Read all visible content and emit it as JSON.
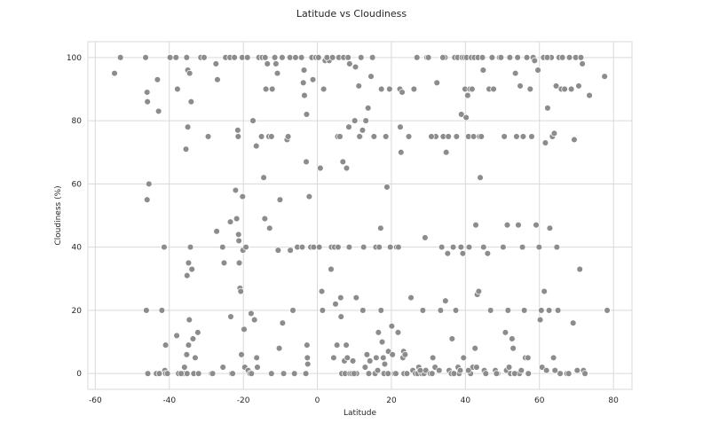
{
  "chart_data": {
    "type": "scatter",
    "title": "Latitude vs Cloudiness",
    "xlabel": "Latitude",
    "ylabel": "Cloudiness (%)",
    "xlim": [
      -62,
      85
    ],
    "ylim": [
      -5,
      105
    ],
    "xticks": [
      -60,
      -40,
      -20,
      0,
      20,
      40,
      60,
      80
    ],
    "yticks": [
      0,
      20,
      40,
      60,
      80,
      100
    ],
    "grid": true,
    "legend": "none",
    "marker_color": "#8c8c8c",
    "marker_edge": "#ffffff",
    "points": [
      [
        -54.8,
        95
      ],
      [
        -53.2,
        100
      ],
      [
        -46.4,
        100
      ],
      [
        -46,
        89
      ],
      [
        -45.9,
        86
      ],
      [
        -45.5,
        60
      ],
      [
        -46,
        55
      ],
      [
        -46.2,
        20
      ],
      [
        -45.8,
        0
      ],
      [
        -43.2,
        93
      ],
      [
        -42.9,
        83
      ],
      [
        -42,
        20
      ],
      [
        -41.4,
        40
      ],
      [
        -41,
        9
      ],
      [
        -41.2,
        1
      ],
      [
        -41,
        0
      ],
      [
        -43.5,
        0
      ],
      [
        -39.8,
        100
      ],
      [
        -38.2,
        100
      ],
      [
        -37.8,
        90
      ],
      [
        -38,
        12
      ],
      [
        -37.5,
        0
      ],
      [
        -36,
        0
      ],
      [
        -35.3,
        100
      ],
      [
        -35,
        96
      ],
      [
        -34.5,
        95
      ],
      [
        -34.1,
        86
      ],
      [
        -35,
        78
      ],
      [
        -35.5,
        71
      ],
      [
        -35.2,
        31
      ],
      [
        -34.8,
        35
      ],
      [
        -34.3,
        40
      ],
      [
        -33.9,
        33
      ],
      [
        -34.6,
        17
      ],
      [
        -33.6,
        11
      ],
      [
        -34.8,
        9
      ],
      [
        -35.3,
        6
      ],
      [
        -33,
        5
      ],
      [
        -35.9,
        2
      ],
      [
        -35.2,
        0
      ],
      [
        -33.4,
        0
      ],
      [
        -32.3,
        13
      ],
      [
        -31.5,
        100
      ],
      [
        -30.6,
        100
      ],
      [
        -29.5,
        75
      ],
      [
        -28.6,
        0
      ],
      [
        -27.4,
        98
      ],
      [
        -27,
        93
      ],
      [
        -27.2,
        45
      ],
      [
        -25.6,
        40
      ],
      [
        -25.2,
        35
      ],
      [
        -25.5,
        2
      ],
      [
        -24.8,
        100
      ],
      [
        -23.6,
        100
      ],
      [
        -23.5,
        48
      ],
      [
        -23.4,
        18
      ],
      [
        -23.2,
        0
      ],
      [
        -22.4,
        100
      ],
      [
        -22.1,
        58
      ],
      [
        -21.8,
        49
      ],
      [
        -21.5,
        77
      ],
      [
        -21.4,
        75
      ],
      [
        -21.3,
        44
      ],
      [
        -21.2,
        42
      ],
      [
        -21.1,
        35
      ],
      [
        -20.9,
        27
      ],
      [
        -20.7,
        26
      ],
      [
        -20.5,
        6
      ],
      [
        -20.3,
        100
      ],
      [
        -20.2,
        56
      ],
      [
        -20.1,
        39
      ],
      [
        -19.8,
        14
      ],
      [
        -19.6,
        2
      ],
      [
        -19.3,
        40
      ],
      [
        -18.9,
        100
      ],
      [
        -18.7,
        1
      ],
      [
        -18.2,
        0
      ],
      [
        -17.9,
        19
      ],
      [
        -17.4,
        80
      ],
      [
        -17,
        17
      ],
      [
        -16.5,
        72
      ],
      [
        -16.4,
        5
      ],
      [
        -16.2,
        2
      ],
      [
        -15.8,
        100
      ],
      [
        -14.9,
        100
      ],
      [
        -14.5,
        62
      ],
      [
        -14.2,
        49
      ],
      [
        -14.1,
        100
      ],
      [
        -13.9,
        90
      ],
      [
        -13.5,
        98
      ],
      [
        -13.1,
        75
      ],
      [
        -12.9,
        46
      ],
      [
        -12.4,
        75
      ],
      [
        -12.2,
        90
      ],
      [
        -11.5,
        100
      ],
      [
        -11.2,
        98
      ],
      [
        -10.8,
        95
      ],
      [
        -10.6,
        39
      ],
      [
        -10.3,
        8
      ],
      [
        -10.1,
        55
      ],
      [
        -9.5,
        100
      ],
      [
        -9.4,
        16
      ],
      [
        -9.1,
        0
      ],
      [
        -8.2,
        74
      ],
      [
        -7.9,
        75
      ],
      [
        -7.4,
        100
      ],
      [
        -7.3,
        39
      ],
      [
        -6.6,
        20
      ],
      [
        -6.2,
        0
      ],
      [
        -5.4,
        40
      ],
      [
        -4.3,
        100
      ],
      [
        -4.1,
        40
      ],
      [
        -3.8,
        92
      ],
      [
        -3.6,
        96
      ],
      [
        -3.5,
        88
      ],
      [
        -3.3,
        0
      ],
      [
        -3,
        67
      ],
      [
        -2.9,
        82
      ],
      [
        -2.8,
        9
      ],
      [
        -2.7,
        5
      ],
      [
        -2.6,
        3
      ],
      [
        -2.2,
        56
      ],
      [
        -1.8,
        40
      ],
      [
        -1.5,
        100
      ],
      [
        -1.2,
        93
      ],
      [
        -1,
        40
      ],
      [
        -0.4,
        100
      ],
      [
        0.3,
        100
      ],
      [
        0.5,
        40
      ],
      [
        0.8,
        65
      ],
      [
        1.2,
        26
      ],
      [
        1.4,
        20
      ],
      [
        1.7,
        90
      ],
      [
        2.1,
        99
      ],
      [
        3.2,
        99
      ],
      [
        3.7,
        33
      ],
      [
        3.8,
        40
      ],
      [
        4.1,
        100
      ],
      [
        4.4,
        5
      ],
      [
        4.6,
        40
      ],
      [
        4.9,
        22
      ],
      [
        5.3,
        9
      ],
      [
        5.5,
        75
      ],
      [
        5.6,
        40
      ],
      [
        5.8,
        100
      ],
      [
        6.1,
        75
      ],
      [
        6.3,
        24
      ],
      [
        6.4,
        18
      ],
      [
        6.6,
        0
      ],
      [
        6.9,
        67
      ],
      [
        7.1,
        100
      ],
      [
        7.3,
        4
      ],
      [
        7.5,
        0
      ],
      [
        7.8,
        9
      ],
      [
        7.9,
        65
      ],
      [
        8.1,
        5
      ],
      [
        8.3,
        100
      ],
      [
        8.5,
        78
      ],
      [
        8.6,
        40
      ],
      [
        8.7,
        98
      ],
      [
        8.8,
        0
      ],
      [
        9.3,
        0
      ],
      [
        9.6,
        4
      ],
      [
        10.1,
        80
      ],
      [
        10.3,
        97
      ],
      [
        10.5,
        24
      ],
      [
        10.6,
        0
      ],
      [
        11.2,
        91
      ],
      [
        11.6,
        75
      ],
      [
        11.8,
        100
      ],
      [
        12.2,
        77
      ],
      [
        12.3,
        20
      ],
      [
        12.5,
        40
      ],
      [
        12.9,
        2
      ],
      [
        13.1,
        80
      ],
      [
        13.4,
        6
      ],
      [
        13.7,
        84
      ],
      [
        13.9,
        0
      ],
      [
        14.2,
        4
      ],
      [
        14.5,
        94
      ],
      [
        14.7,
        100
      ],
      [
        14.9,
        100
      ],
      [
        15.3,
        75
      ],
      [
        15.6,
        0
      ],
      [
        15.8,
        40
      ],
      [
        16.3,
        1
      ],
      [
        16.5,
        13
      ],
      [
        16.7,
        40
      ],
      [
        17.1,
        46
      ],
      [
        17.2,
        20
      ],
      [
        17.3,
        90
      ],
      [
        17.5,
        10
      ],
      [
        17.8,
        5
      ],
      [
        18,
        0
      ],
      [
        18.2,
        3
      ],
      [
        18.5,
        75
      ],
      [
        18.8,
        59
      ],
      [
        19.2,
        7
      ],
      [
        19.5,
        90
      ],
      [
        19.7,
        40
      ],
      [
        20.1,
        15
      ],
      [
        20.3,
        6
      ],
      [
        20.8,
        0
      ],
      [
        21.2,
        0
      ],
      [
        21.4,
        40
      ],
      [
        21.8,
        13
      ],
      [
        22.3,
        90
      ],
      [
        22.4,
        78
      ],
      [
        22.6,
        70
      ],
      [
        22.9,
        89
      ],
      [
        23.1,
        5
      ],
      [
        23.3,
        7
      ],
      [
        23.4,
        0
      ],
      [
        23.7,
        6
      ],
      [
        24.2,
        0
      ],
      [
        24.7,
        75
      ],
      [
        25.3,
        24
      ],
      [
        25.8,
        1
      ],
      [
        26.1,
        90
      ],
      [
        26.5,
        0
      ],
      [
        27.1,
        0
      ],
      [
        27.4,
        2
      ],
      [
        28.2,
        0
      ],
      [
        28.5,
        20
      ],
      [
        28.8,
        0
      ],
      [
        29.1,
        43
      ],
      [
        29.3,
        1
      ],
      [
        29.6,
        100
      ],
      [
        30,
        100
      ],
      [
        30.5,
        0
      ],
      [
        31,
        0
      ],
      [
        31.2,
        5
      ],
      [
        31.8,
        2
      ],
      [
        32,
        75
      ],
      [
        32.3,
        92
      ],
      [
        32.9,
        1
      ],
      [
        33.3,
        20
      ],
      [
        33.6,
        40
      ],
      [
        34,
        75
      ],
      [
        34.5,
        100
      ],
      [
        34.6,
        23
      ],
      [
        34.8,
        70
      ],
      [
        35.2,
        38
      ],
      [
        35.4,
        75
      ],
      [
        35.6,
        1
      ],
      [
        36.2,
        0
      ],
      [
        36.4,
        11
      ],
      [
        36.7,
        40
      ],
      [
        37.1,
        100
      ],
      [
        37.4,
        20
      ],
      [
        37.6,
        75
      ],
      [
        37.9,
        100
      ],
      [
        38,
        2
      ],
      [
        38.3,
        0
      ],
      [
        38.6,
        1
      ],
      [
        38.8,
        40
      ],
      [
        38.9,
        82
      ],
      [
        39.1,
        100
      ],
      [
        39.3,
        38
      ],
      [
        39.5,
        5
      ],
      [
        39.7,
        100
      ],
      [
        39.9,
        90
      ],
      [
        40.2,
        81
      ],
      [
        40.3,
        100
      ],
      [
        40.6,
        88
      ],
      [
        40.8,
        75
      ],
      [
        41,
        40
      ],
      [
        41.2,
        90
      ],
      [
        41.4,
        0
      ],
      [
        41.6,
        100
      ],
      [
        41.8,
        90
      ],
      [
        42,
        2
      ],
      [
        42.2,
        75
      ],
      [
        42.4,
        100
      ],
      [
        42.6,
        8
      ],
      [
        42.8,
        47
      ],
      [
        43,
        2
      ],
      [
        43.2,
        25
      ],
      [
        43.4,
        100
      ],
      [
        43.6,
        26
      ],
      [
        43.8,
        75
      ],
      [
        44,
        62
      ],
      [
        44.3,
        75
      ],
      [
        44.6,
        100
      ],
      [
        44.8,
        96
      ],
      [
        45.1,
        1
      ],
      [
        45.5,
        0
      ],
      [
        46,
        38
      ],
      [
        46.4,
        90
      ],
      [
        46.8,
        20
      ],
      [
        47.2,
        100
      ],
      [
        47.6,
        90
      ],
      [
        48.1,
        1
      ],
      [
        48.7,
        0
      ],
      [
        49.2,
        100
      ],
      [
        49.6,
        100
      ],
      [
        50.2,
        40
      ],
      [
        50.5,
        75
      ],
      [
        50.8,
        13
      ],
      [
        51.1,
        1
      ],
      [
        51.3,
        47
      ],
      [
        51.5,
        20
      ],
      [
        51.8,
        2
      ],
      [
        52,
        100
      ],
      [
        52.2,
        0
      ],
      [
        52.6,
        11
      ],
      [
        52.9,
        8
      ],
      [
        53.2,
        0
      ],
      [
        53.5,
        95
      ],
      [
        53.8,
        75
      ],
      [
        54.1,
        100
      ],
      [
        54.3,
        47
      ],
      [
        54.6,
        0
      ],
      [
        54.8,
        91
      ],
      [
        55.1,
        1
      ],
      [
        55.4,
        40
      ],
      [
        55.6,
        75
      ],
      [
        55.9,
        20
      ],
      [
        56.2,
        5
      ],
      [
        56.6,
        100
      ],
      [
        57,
        0
      ],
      [
        57.5,
        90
      ],
      [
        57.9,
        75
      ],
      [
        58.3,
        100
      ],
      [
        58.7,
        99
      ],
      [
        59.1,
        47
      ],
      [
        59.6,
        96
      ],
      [
        59.9,
        40
      ],
      [
        60.2,
        17
      ],
      [
        60.5,
        20
      ],
      [
        60.7,
        2
      ],
      [
        61.1,
        100
      ],
      [
        61.3,
        26
      ],
      [
        61.6,
        73
      ],
      [
        61.9,
        1
      ],
      [
        62.2,
        84
      ],
      [
        62.4,
        100
      ],
      [
        62.6,
        20
      ],
      [
        62.8,
        46
      ],
      [
        63.2,
        100
      ],
      [
        63.5,
        75
      ],
      [
        63.8,
        5
      ],
      [
        64,
        76
      ],
      [
        64.2,
        1
      ],
      [
        64.5,
        91
      ],
      [
        64.7,
        40
      ],
      [
        65,
        20
      ],
      [
        65.3,
        100
      ],
      [
        65.6,
        0
      ],
      [
        65.9,
        90
      ],
      [
        66.2,
        100
      ],
      [
        66.8,
        90
      ],
      [
        67.4,
        0
      ],
      [
        68.1,
        100
      ],
      [
        68.6,
        90
      ],
      [
        69.1,
        16
      ],
      [
        69.4,
        74
      ],
      [
        69.8,
        100
      ],
      [
        70.2,
        1
      ],
      [
        70.6,
        91
      ],
      [
        70.9,
        33
      ],
      [
        71.2,
        100
      ],
      [
        71.6,
        98
      ],
      [
        71.9,
        1
      ],
      [
        72.3,
        0
      ],
      [
        73.5,
        88
      ],
      [
        77.6,
        94
      ],
      [
        78.3,
        20
      ],
      [
        53.3,
        0
      ],
      [
        48.4,
        0
      ],
      [
        40.8,
        1
      ],
      [
        36.9,
        0
      ],
      [
        27.8,
        1
      ],
      [
        19.1,
        0
      ],
      [
        9.9,
        0
      ],
      [
        -3.1,
        0
      ],
      [
        -12.4,
        0
      ],
      [
        -17.8,
        0
      ],
      [
        -22.9,
        0
      ],
      [
        -28.3,
        0
      ],
      [
        -32.1,
        0
      ],
      [
        -36.8,
        0
      ],
      [
        -40.5,
        0
      ],
      [
        -42.7,
        0
      ],
      [
        15.9,
        5
      ],
      [
        21.9,
        40
      ],
      [
        30.8,
        75
      ],
      [
        44.9,
        40
      ],
      [
        56.9,
        5
      ],
      [
        62.1,
        100
      ],
      [
        -15.1,
        75
      ],
      [
        -5.9,
        100
      ],
      [
        2.6,
        100
      ],
      [
        11.4,
        75
      ],
      [
        26.9,
        100
      ],
      [
        33.9,
        100
      ],
      [
        67.9,
        0
      ]
    ]
  }
}
